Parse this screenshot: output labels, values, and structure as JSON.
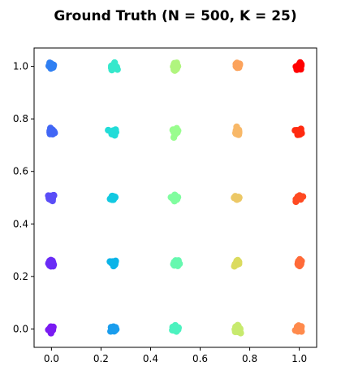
{
  "chart_data": {
    "type": "scatter",
    "title": "Ground Truth (N = 500, K = 25)",
    "xlabel": "",
    "ylabel": "",
    "xlim": [
      -0.07,
      1.07
    ],
    "ylim": [
      -0.07,
      1.07
    ],
    "xticks": [
      0.0,
      0.2,
      0.4,
      0.6,
      0.8,
      1.0
    ],
    "yticks": [
      0.0,
      0.2,
      0.4,
      0.6,
      0.8,
      1.0
    ],
    "xtick_labels": [
      "0.0",
      "0.2",
      "0.4",
      "0.6",
      "0.8",
      "1.0"
    ],
    "ytick_labels": [
      "0.0",
      "0.2",
      "0.4",
      "0.6",
      "0.8",
      "1.0"
    ],
    "grid": false,
    "legend": "none",
    "points_per_cluster": 20,
    "clusters": [
      {
        "x": 0.0,
        "y": 0.0,
        "color": "#7a1bf2"
      },
      {
        "x": 0.0,
        "y": 0.25,
        "color": "#6a2cf6"
      },
      {
        "x": 0.0,
        "y": 0.5,
        "color": "#5a4df7"
      },
      {
        "x": 0.0,
        "y": 0.75,
        "color": "#4166f5"
      },
      {
        "x": 0.0,
        "y": 1.0,
        "color": "#2f7ff2"
      },
      {
        "x": 0.25,
        "y": 0.0,
        "color": "#1a9ded"
      },
      {
        "x": 0.25,
        "y": 0.25,
        "color": "#0bb4e8"
      },
      {
        "x": 0.25,
        "y": 0.5,
        "color": "#12c9e1"
      },
      {
        "x": 0.25,
        "y": 0.75,
        "color": "#22dcd8"
      },
      {
        "x": 0.25,
        "y": 1.0,
        "color": "#36e8cc"
      },
      {
        "x": 0.5,
        "y": 0.0,
        "color": "#4cf2bf"
      },
      {
        "x": 0.5,
        "y": 0.25,
        "color": "#66f8af"
      },
      {
        "x": 0.5,
        "y": 0.5,
        "color": "#80fd9f"
      },
      {
        "x": 0.5,
        "y": 0.75,
        "color": "#99fd8e"
      },
      {
        "x": 0.5,
        "y": 1.0,
        "color": "#b0f57e"
      },
      {
        "x": 0.75,
        "y": 0.0,
        "color": "#c7ea6e"
      },
      {
        "x": 0.75,
        "y": 0.25,
        "color": "#dbdb5f"
      },
      {
        "x": 0.75,
        "y": 0.5,
        "color": "#ecc866"
      },
      {
        "x": 0.75,
        "y": 0.75,
        "color": "#f8b868"
      },
      {
        "x": 0.75,
        "y": 1.0,
        "color": "#fca35c"
      },
      {
        "x": 1.0,
        "y": 0.0,
        "color": "#ff8a4c"
      },
      {
        "x": 1.0,
        "y": 0.25,
        "color": "#ff6a38"
      },
      {
        "x": 1.0,
        "y": 0.5,
        "color": "#ff4a22"
      },
      {
        "x": 1.0,
        "y": 0.75,
        "color": "#ff2a10"
      },
      {
        "x": 1.0,
        "y": 1.0,
        "color": "#ff0000"
      }
    ]
  }
}
